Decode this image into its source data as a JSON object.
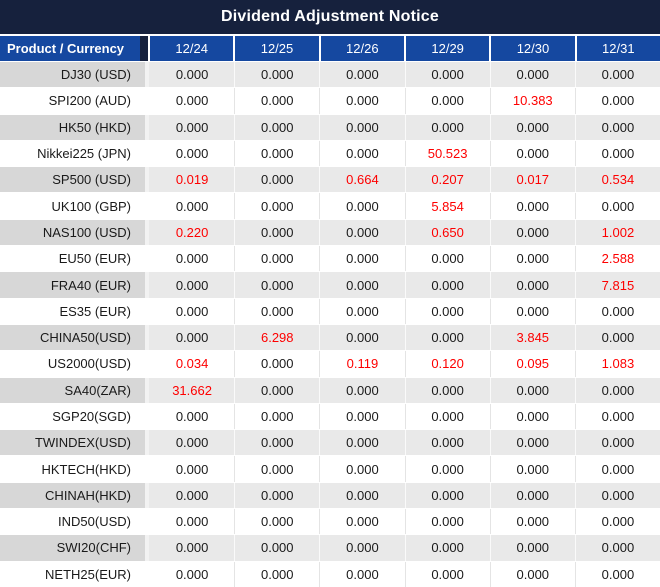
{
  "title": "Dividend Adjustment Notice",
  "table": {
    "product_header": "Product / Currency",
    "date_headers": [
      "12/24",
      "12/25",
      "12/26",
      "12/29",
      "12/30",
      "12/31"
    ],
    "rows": [
      {
        "product": "DJ30 (USD)",
        "values": [
          "0.000",
          "0.000",
          "0.000",
          "0.000",
          "0.000",
          "0.000"
        ]
      },
      {
        "product": "SPI200 (AUD)",
        "values": [
          "0.000",
          "0.000",
          "0.000",
          "0.000",
          "10.383",
          "0.000"
        ]
      },
      {
        "product": "HK50 (HKD)",
        "values": [
          "0.000",
          "0.000",
          "0.000",
          "0.000",
          "0.000",
          "0.000"
        ]
      },
      {
        "product": "Nikkei225 (JPN)",
        "values": [
          "0.000",
          "0.000",
          "0.000",
          "50.523",
          "0.000",
          "0.000"
        ]
      },
      {
        "product": "SP500 (USD)",
        "values": [
          "0.019",
          "0.000",
          "0.664",
          "0.207",
          "0.017",
          "0.534"
        ]
      },
      {
        "product": "UK100 (GBP)",
        "values": [
          "0.000",
          "0.000",
          "0.000",
          "5.854",
          "0.000",
          "0.000"
        ]
      },
      {
        "product": "NAS100 (USD)",
        "values": [
          "0.220",
          "0.000",
          "0.000",
          "0.650",
          "0.000",
          "1.002"
        ]
      },
      {
        "product": "EU50 (EUR)",
        "values": [
          "0.000",
          "0.000",
          "0.000",
          "0.000",
          "0.000",
          "2.588"
        ]
      },
      {
        "product": "FRA40 (EUR)",
        "values": [
          "0.000",
          "0.000",
          "0.000",
          "0.000",
          "0.000",
          "7.815"
        ]
      },
      {
        "product": "ES35 (EUR)",
        "values": [
          "0.000",
          "0.000",
          "0.000",
          "0.000",
          "0.000",
          "0.000"
        ]
      },
      {
        "product": "CHINA50(USD)",
        "values": [
          "0.000",
          "6.298",
          "0.000",
          "0.000",
          "3.845",
          "0.000"
        ]
      },
      {
        "product": "US2000(USD)",
        "values": [
          "0.034",
          "0.000",
          "0.119",
          "0.120",
          "0.095",
          "1.083"
        ]
      },
      {
        "product": "SA40(ZAR)",
        "values": [
          "31.662",
          "0.000",
          "0.000",
          "0.000",
          "0.000",
          "0.000"
        ]
      },
      {
        "product": "SGP20(SGD)",
        "values": [
          "0.000",
          "0.000",
          "0.000",
          "0.000",
          "0.000",
          "0.000"
        ]
      },
      {
        "product": "TWINDEX(USD)",
        "values": [
          "0.000",
          "0.000",
          "0.000",
          "0.000",
          "0.000",
          "0.000"
        ]
      },
      {
        "product": "HKTECH(HKD)",
        "values": [
          "0.000",
          "0.000",
          "0.000",
          "0.000",
          "0.000",
          "0.000"
        ]
      },
      {
        "product": "CHINAH(HKD)",
        "values": [
          "0.000",
          "0.000",
          "0.000",
          "0.000",
          "0.000",
          "0.000"
        ]
      },
      {
        "product": "IND50(USD)",
        "values": [
          "0.000",
          "0.000",
          "0.000",
          "0.000",
          "0.000",
          "0.000"
        ]
      },
      {
        "product": "SWI20(CHF)",
        "values": [
          "0.000",
          "0.000",
          "0.000",
          "0.000",
          "0.000",
          "0.000"
        ]
      },
      {
        "product": "NETH25(EUR)",
        "values": [
          "0.000",
          "0.000",
          "0.000",
          "0.000",
          "0.000",
          "0.000"
        ]
      }
    ]
  },
  "colors": {
    "title_bar_navy": "#16213D",
    "header_blue": "#1548A0",
    "gray_row_product": "#D7D7D7",
    "gray_row_value": "#E9E9E9",
    "white_row": "#FFFFFF",
    "value_black": "#1A1A1A",
    "value_red": "#FE0000",
    "header_text": "#FFFFFF"
  }
}
